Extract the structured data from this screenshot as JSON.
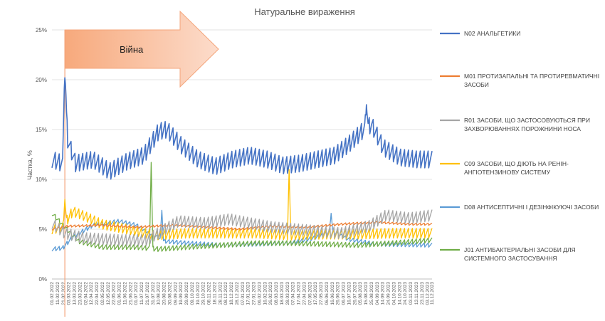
{
  "chart_data": {
    "type": "line",
    "title": "Натуральне вираження",
    "ylabel": "Частка, %",
    "xlabel": "",
    "ylim": [
      0,
      25
    ],
    "yticks": [
      "0%",
      "5%",
      "10%",
      "15%",
      "20%",
      "25%"
    ],
    "grid": true,
    "legend_position": "right",
    "x_range": [
      "2022-02-01",
      "2023-12-11"
    ],
    "x_tick_labels": [
      "01.02.2022",
      "11.02.2022",
      "21.02.2022",
      "03.03.2022",
      "13.03.2022",
      "23.03.2022",
      "02.04.2022",
      "12.04.2022",
      "22.04.2022",
      "02.05.2022",
      "12.05.2022",
      "22.05.2022",
      "01.06.2022",
      "11.06.2022",
      "21.06.2022",
      "01.07.2022",
      "11.07.2022",
      "21.07.2022",
      "31.07.2022",
      "10.08.2022",
      "20.08.2022",
      "30.08.2022",
      "09.09.2022",
      "19.09.2022",
      "29.09.2022",
      "09.10.2022",
      "19.10.2022",
      "29.10.2022",
      "08.11.2022",
      "18.11.2022",
      "28.11.2022",
      "08.12.2022",
      "18.12.2022",
      "28.12.2022",
      "07.01.2023",
      "17.01.2023",
      "27.01.2023",
      "06.02.2023",
      "16.02.2023",
      "26.02.2023",
      "08.03.2023",
      "18.03.2023",
      "28.03.2023",
      "07.04.2023",
      "17.04.2023",
      "27.04.2023",
      "07.05.2023",
      "17.05.2023",
      "27.05.2023",
      "06.06.2023",
      "16.06.2023",
      "26.06.2023",
      "06.07.2023",
      "16.07.2023",
      "26.07.2023",
      "05.08.2023",
      "15.08.2023",
      "25.08.2023",
      "04.09.2023",
      "14.09.2023",
      "24.09.2023",
      "04.10.2023",
      "14.10.2023",
      "24.10.2023",
      "03.11.2023",
      "13.11.2023",
      "23.11.2023",
      "03.12.2023",
      "11.12.2023"
    ],
    "annotation": {
      "text": "Війна",
      "date": "2022-02-24"
    },
    "series": [
      {
        "name": "N02 АНАЛЬГЕТИКИ",
        "color": "#4472C4",
        "points": [
          [
            "2022-02-01",
            12.0
          ],
          [
            "2022-02-20",
            11.6
          ],
          [
            "2022-02-24",
            19.5
          ],
          [
            "2022-03-01",
            14.0
          ],
          [
            "2022-03-15",
            11.6
          ],
          [
            "2022-04-15",
            12.0
          ],
          [
            "2022-05-15",
            10.8
          ],
          [
            "2022-06-15",
            11.8
          ],
          [
            "2022-07-15",
            12.4
          ],
          [
            "2022-08-10",
            14.8
          ],
          [
            "2022-08-25",
            15.0
          ],
          [
            "2022-09-20",
            13.4
          ],
          [
            "2022-10-20",
            12.0
          ],
          [
            "2022-11-20",
            11.3
          ],
          [
            "2022-12-20",
            12.0
          ],
          [
            "2023-01-20",
            12.4
          ],
          [
            "2023-02-20",
            12.0
          ],
          [
            "2023-03-20",
            11.4
          ],
          [
            "2023-04-20",
            11.6
          ],
          [
            "2023-05-20",
            12.0
          ],
          [
            "2023-06-20",
            12.4
          ],
          [
            "2023-07-15",
            13.5
          ],
          [
            "2023-08-15",
            15.2
          ],
          [
            "2023-08-25",
            15.5
          ],
          [
            "2023-09-15",
            13.2
          ],
          [
            "2023-10-15",
            12.2
          ],
          [
            "2023-11-15",
            12.0
          ],
          [
            "2023-12-11",
            12.0
          ]
        ],
        "amplitude": 1.2,
        "spikes": [
          [
            "2022-02-24",
            20.2
          ],
          [
            "2023-08-16",
            17.5
          ]
        ]
      },
      {
        "name": "M01 ПРОТИЗАПАЛЬНІ ТА ПРОТИРЕВМАТИЧНІ ЗАСОБИ",
        "color": "#ED7D31",
        "points": [
          [
            "2022-02-01",
            5.0
          ],
          [
            "2022-03-01",
            5.3
          ],
          [
            "2022-05-01",
            5.4
          ],
          [
            "2022-07-01",
            5.2
          ],
          [
            "2022-09-01",
            5.4
          ],
          [
            "2022-11-01",
            5.2
          ],
          [
            "2023-01-01",
            5.0
          ],
          [
            "2023-03-01",
            5.3
          ],
          [
            "2023-05-01",
            5.2
          ],
          [
            "2023-07-01",
            5.5
          ],
          [
            "2023-09-01",
            5.7
          ],
          [
            "2023-11-01",
            5.5
          ],
          [
            "2023-12-11",
            5.5
          ]
        ],
        "amplitude": 0.15,
        "spikes": []
      },
      {
        "name": "R01 ЗАСОБИ, ЩО ЗАСТОСОВУЮТЬСЯ ПРИ ЗАХВОРЮВАННЯХ ПОРОЖНИНИ НОСА",
        "color": "#A5A5A5",
        "points": [
          [
            "2022-02-01",
            5.6
          ],
          [
            "2022-02-24",
            4.6
          ],
          [
            "2022-04-01",
            4.1
          ],
          [
            "2022-06-01",
            3.9
          ],
          [
            "2022-07-20",
            3.9
          ],
          [
            "2022-08-15",
            4.8
          ],
          [
            "2022-09-15",
            5.8
          ],
          [
            "2022-11-01",
            5.6
          ],
          [
            "2022-12-15",
            6.0
          ],
          [
            "2023-01-20",
            5.6
          ],
          [
            "2023-03-01",
            5.2
          ],
          [
            "2023-05-01",
            4.9
          ],
          [
            "2023-07-01",
            4.6
          ],
          [
            "2023-08-20",
            5.3
          ],
          [
            "2023-09-20",
            6.4
          ],
          [
            "2023-11-01",
            6.1
          ],
          [
            "2023-12-11",
            6.4
          ]
        ],
        "amplitude": 0.8,
        "spikes": []
      },
      {
        "name": "C09 ЗАСОБИ, ЩО ДІЮТЬ НА РЕНІН-АНГІОТЕНЗИНОВУ СИСТЕМУ",
        "color": "#FFC000",
        "points": [
          [
            "2022-02-01",
            5.0
          ],
          [
            "2022-02-20",
            5.2
          ],
          [
            "2022-03-10",
            6.8
          ],
          [
            "2022-04-01",
            6.3
          ],
          [
            "2022-05-01",
            5.5
          ],
          [
            "2022-06-15",
            5.0
          ],
          [
            "2022-08-01",
            4.4
          ],
          [
            "2022-10-01",
            4.6
          ],
          [
            "2022-12-01",
            4.6
          ],
          [
            "2023-02-01",
            4.6
          ],
          [
            "2023-04-01",
            4.4
          ],
          [
            "2023-06-01",
            4.5
          ],
          [
            "2023-08-01",
            4.5
          ],
          [
            "2023-10-01",
            4.6
          ],
          [
            "2023-12-11",
            4.6
          ]
        ],
        "amplitude": 0.7,
        "spikes": [
          [
            "2022-02-24",
            8.0
          ],
          [
            "2023-03-31",
            11.0
          ]
        ]
      },
      {
        "name": "D08 АНТИСЕПТИЧНІ І ДЕЗІНФІКУЮЧІ ЗАСОБИ",
        "color": "#5B9BD5",
        "points": [
          [
            "2022-02-01",
            3.0
          ],
          [
            "2022-02-20",
            3.1
          ],
          [
            "2022-03-10",
            4.2
          ],
          [
            "2022-04-15",
            5.4
          ],
          [
            "2022-06-01",
            5.8
          ],
          [
            "2022-07-01",
            5.4
          ],
          [
            "2022-07-20",
            4.8
          ],
          [
            "2022-08-20",
            3.8
          ],
          [
            "2022-10-01",
            3.6
          ],
          [
            "2022-12-01",
            3.4
          ],
          [
            "2023-02-01",
            3.5
          ],
          [
            "2023-04-01",
            3.6
          ],
          [
            "2023-05-20",
            4.2
          ],
          [
            "2023-06-15",
            4.8
          ],
          [
            "2023-07-15",
            4.0
          ],
          [
            "2023-09-01",
            3.5
          ],
          [
            "2023-12-11",
            3.4
          ]
        ],
        "amplitude": 0.3,
        "spikes": [
          [
            "2022-08-16",
            6.9
          ],
          [
            "2023-06-14",
            6.6
          ]
        ]
      },
      {
        "name": "J01 АНТИБАКТЕРІАЛЬНІ ЗАСОБИ ДЛЯ СИСТЕМНОГО ЗАСТОСУВАННЯ",
        "color": "#70AD47",
        "points": [
          [
            "2022-02-01",
            6.6
          ],
          [
            "2022-02-24",
            5.2
          ],
          [
            "2022-03-20",
            3.8
          ],
          [
            "2022-05-01",
            3.2
          ],
          [
            "2022-07-01",
            3.2
          ],
          [
            "2022-08-10",
            3.0
          ],
          [
            "2022-10-01",
            3.2
          ],
          [
            "2022-12-01",
            3.4
          ],
          [
            "2023-02-01",
            3.6
          ],
          [
            "2023-04-01",
            3.6
          ],
          [
            "2023-06-01",
            3.5
          ],
          [
            "2023-08-01",
            3.4
          ],
          [
            "2023-10-01",
            3.6
          ],
          [
            "2023-12-11",
            3.9
          ]
        ],
        "amplitude": 0.35,
        "spikes": [
          [
            "2022-07-28",
            11.7
          ]
        ]
      }
    ]
  }
}
